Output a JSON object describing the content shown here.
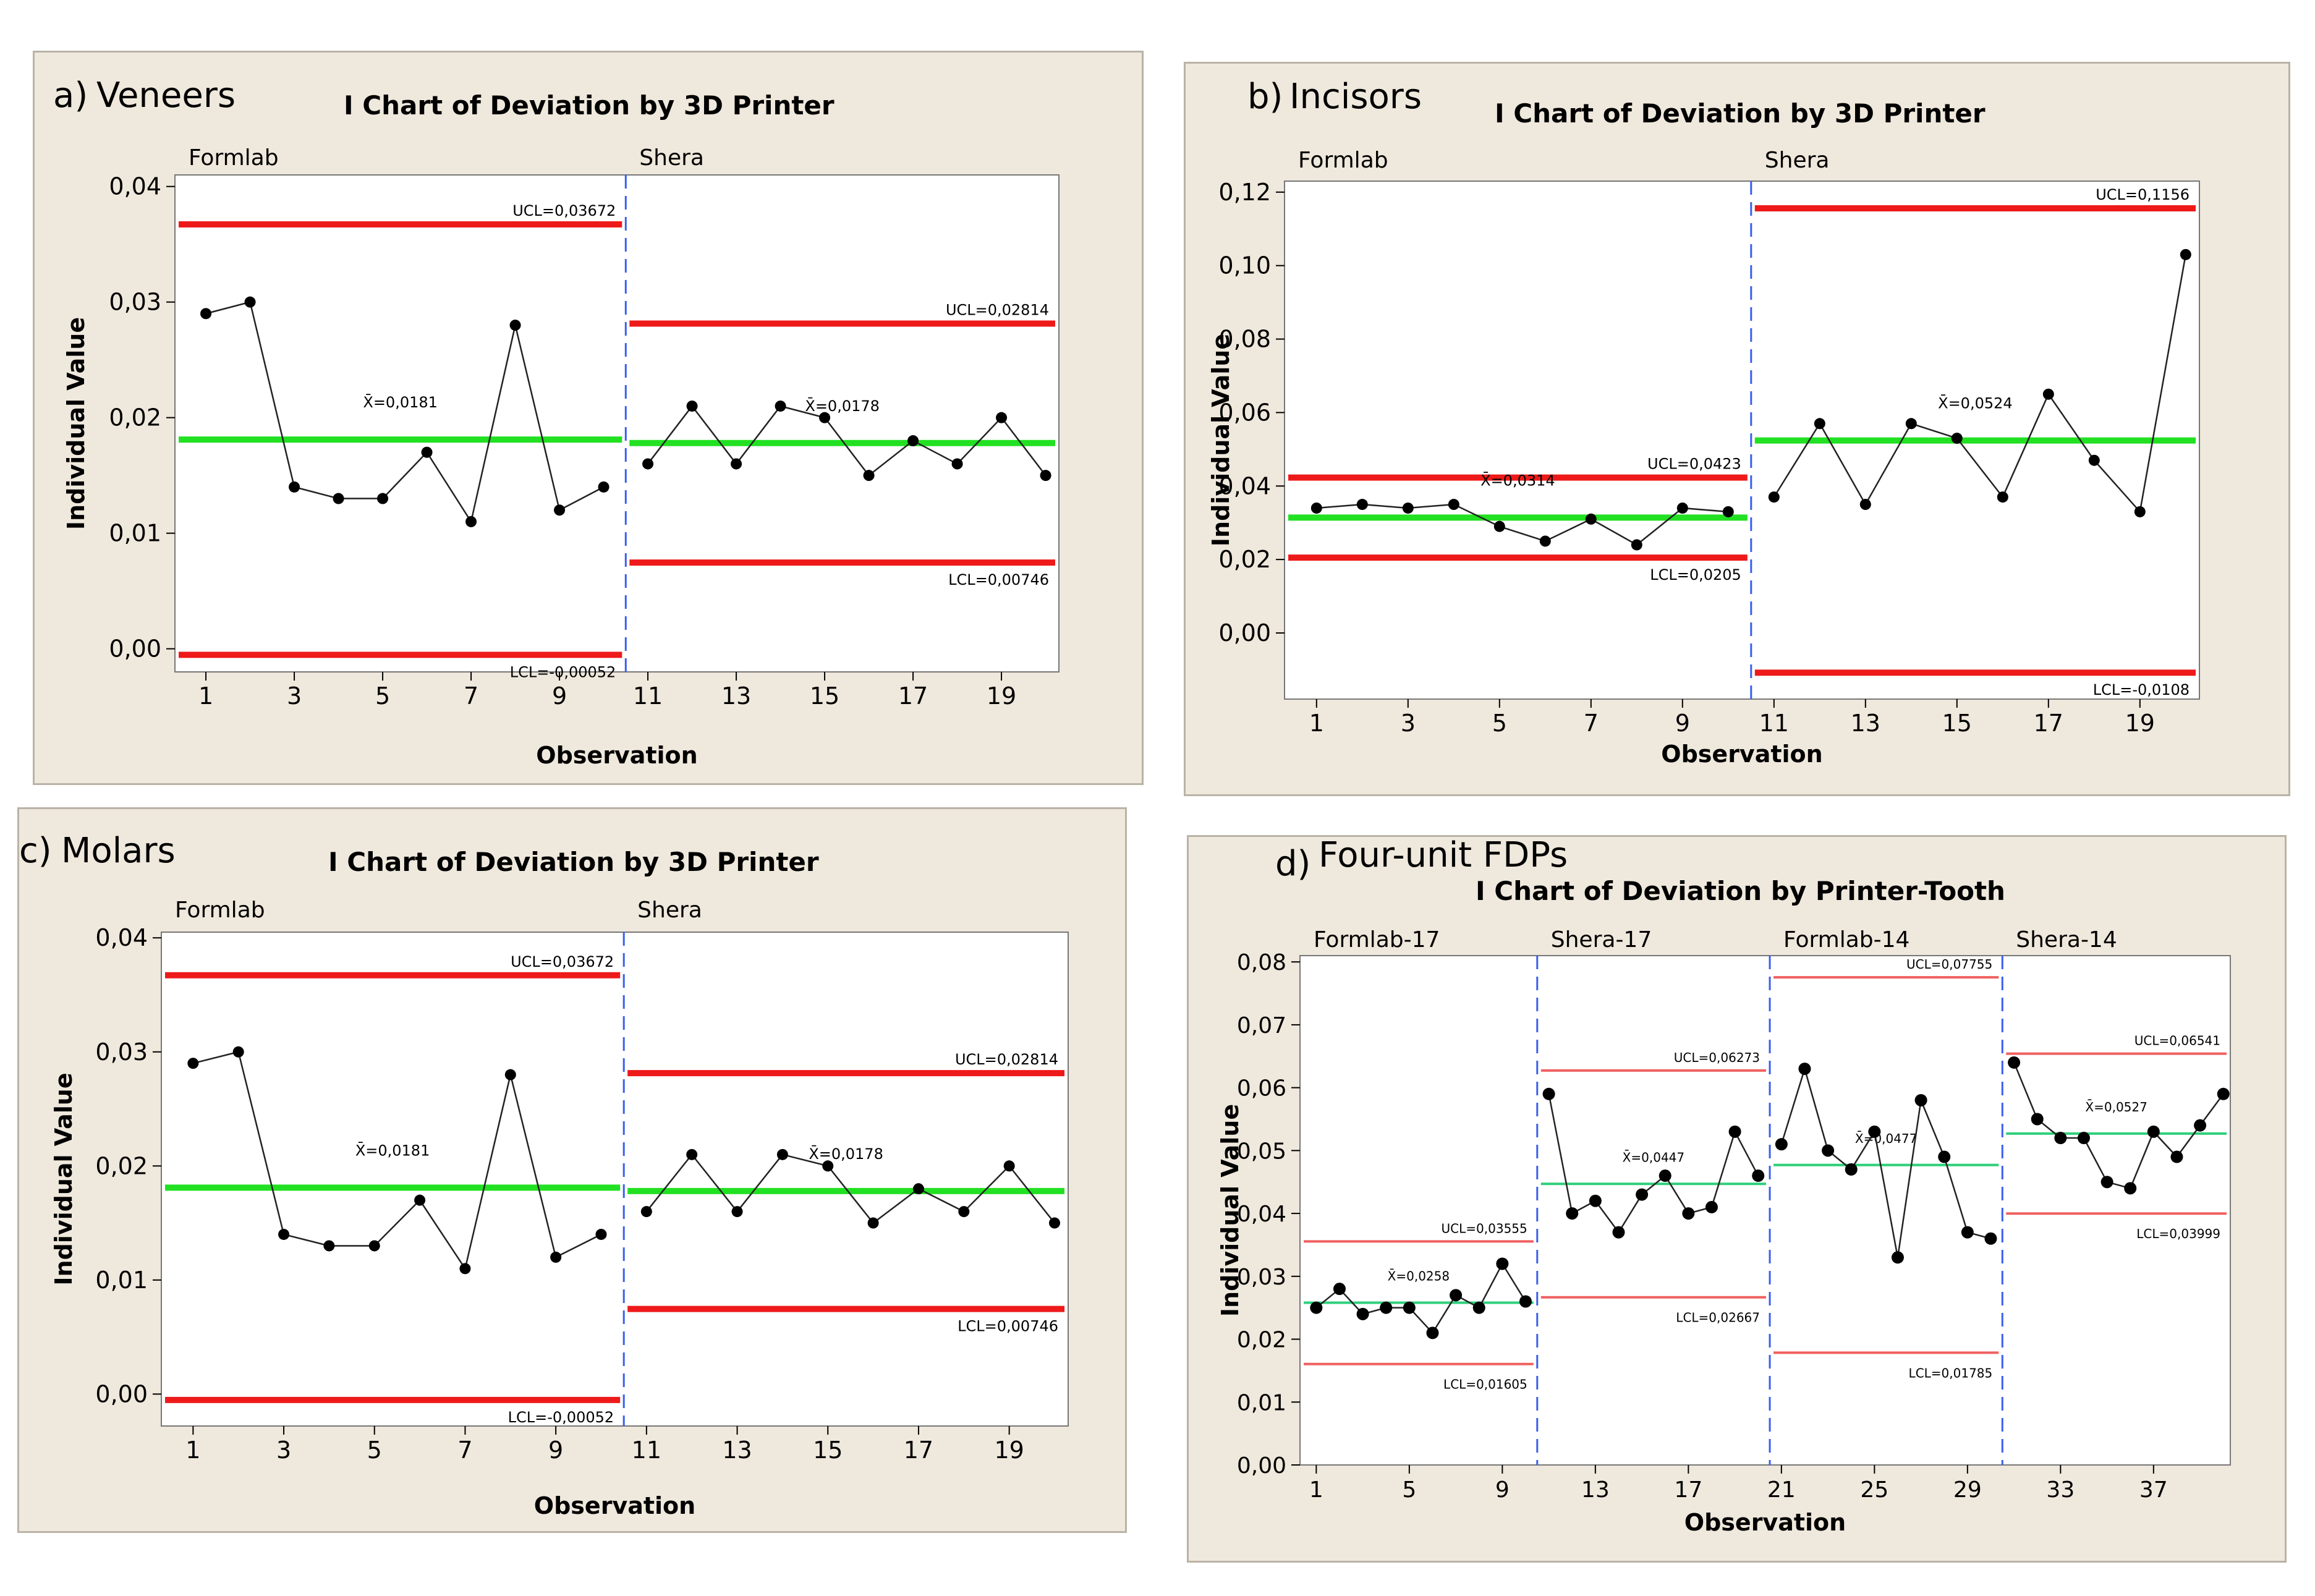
{
  "chart_data": [
    {
      "type": "line",
      "panel_label": "a)",
      "panel_name": "Veneers",
      "title": "I Chart of Deviation by 3D Printer",
      "xlabel": "Observation",
      "ylabel": "Individual Value",
      "xlim": [
        0.3,
        20.3
      ],
      "ylim": [
        -0.002,
        0.041
      ],
      "yticks": [
        0.0,
        0.01,
        0.02,
        0.03,
        0.04
      ],
      "ytick_labels": [
        "0,00",
        "0,01",
        "0,02",
        "0,03",
        "0,04"
      ],
      "xticks": [
        1,
        3,
        5,
        7,
        9,
        11,
        13,
        15,
        17,
        19
      ],
      "xtick_labels": [
        "1",
        "3",
        "5",
        "7",
        "9",
        "11",
        "13",
        "15",
        "17",
        "19"
      ],
      "groups": [
        {
          "name": "Formlab",
          "x": [
            1,
            2,
            3,
            4,
            5,
            6,
            7,
            8,
            9,
            10
          ],
          "values": [
            0.029,
            0.03,
            0.014,
            0.013,
            0.013,
            0.017,
            0.011,
            0.028,
            0.012,
            0.014
          ],
          "ucl": 0.03672,
          "center": 0.0181,
          "lcl": -0.00052,
          "ucl_label": "UCL=0,03672",
          "center_label": "X̄=0,0181",
          "lcl_label": "LCL=-0,00052"
        },
        {
          "name": "Shera",
          "x": [
            11,
            12,
            13,
            14,
            15,
            16,
            17,
            18,
            19,
            20
          ],
          "values": [
            0.016,
            0.021,
            0.016,
            0.021,
            0.02,
            0.015,
            0.018,
            0.016,
            0.02,
            0.015
          ],
          "ucl": 0.02814,
          "center": 0.0178,
          "lcl": 0.00746,
          "ucl_label": "UCL=0,02814",
          "center_label": "X̄=0,0178",
          "lcl_label": "LCL=0,00746"
        }
      ]
    },
    {
      "type": "line",
      "panel_label": "b)",
      "panel_name": "Incisors",
      "title": "I Chart of Deviation by 3D Printer",
      "xlabel": "Observation",
      "ylabel": "Individual Value",
      "xlim": [
        0.3,
        20.3
      ],
      "ylim": [
        -0.018,
        0.123
      ],
      "yticks": [
        0.0,
        0.02,
        0.04,
        0.06,
        0.08,
        0.1,
        0.12
      ],
      "ytick_labels": [
        "0,00",
        "0,02",
        "0,04",
        "0,06",
        "0,08",
        "0,10",
        "0,12"
      ],
      "xticks": [
        1,
        3,
        5,
        7,
        9,
        11,
        13,
        15,
        17,
        19
      ],
      "xtick_labels": [
        "1",
        "3",
        "5",
        "7",
        "9",
        "11",
        "13",
        "15",
        "17",
        "19"
      ],
      "groups": [
        {
          "name": "Formlab",
          "x": [
            1,
            2,
            3,
            4,
            5,
            6,
            7,
            8,
            9,
            10
          ],
          "values": [
            0.034,
            0.035,
            0.034,
            0.035,
            0.029,
            0.025,
            0.031,
            0.024,
            0.034,
            0.033
          ],
          "ucl": 0.0423,
          "center": 0.0314,
          "lcl": 0.0205,
          "ucl_label": "UCL=0,0423",
          "center_label": "X̄=0,0314",
          "lcl_label": "LCL=0,0205"
        },
        {
          "name": "Shera",
          "x": [
            11,
            12,
            13,
            14,
            15,
            16,
            17,
            18,
            19,
            20
          ],
          "values": [
            0.037,
            0.057,
            0.035,
            0.057,
            0.053,
            0.037,
            0.065,
            0.047,
            0.033,
            0.103
          ],
          "ucl": 0.1156,
          "center": 0.0524,
          "lcl": -0.0108,
          "ucl_label": "UCL=0,1156",
          "center_label": "X̄=0,0524",
          "lcl_label": "LCL=-0,0108"
        }
      ]
    },
    {
      "type": "line",
      "panel_label": "c)",
      "panel_name": "Molars",
      "title": "I Chart of Deviation by 3D Printer",
      "xlabel": "Observation",
      "ylabel": "Individual Value",
      "xlim": [
        0.3,
        20.3
      ],
      "ylim": [
        -0.0028,
        0.0405
      ],
      "yticks": [
        0.0,
        0.01,
        0.02,
        0.03,
        0.04
      ],
      "ytick_labels": [
        "0,00",
        "0,01",
        "0,02",
        "0,03",
        "0,04"
      ],
      "xticks": [
        1,
        3,
        5,
        7,
        9,
        11,
        13,
        15,
        17,
        19
      ],
      "xtick_labels": [
        "1",
        "3",
        "5",
        "7",
        "9",
        "11",
        "13",
        "15",
        "17",
        "19"
      ],
      "groups": [
        {
          "name": "Formlab",
          "x": [
            1,
            2,
            3,
            4,
            5,
            6,
            7,
            8,
            9,
            10
          ],
          "values": [
            0.029,
            0.03,
            0.014,
            0.013,
            0.013,
            0.017,
            0.011,
            0.028,
            0.012,
            0.014
          ],
          "ucl": 0.03672,
          "center": 0.0181,
          "lcl": -0.00052,
          "ucl_label": "UCL=0,03672",
          "center_label": "X̄=0,0181",
          "lcl_label": "LCL=-0,00052"
        },
        {
          "name": "Shera",
          "x": [
            11,
            12,
            13,
            14,
            15,
            16,
            17,
            18,
            19,
            20
          ],
          "values": [
            0.016,
            0.021,
            0.016,
            0.021,
            0.02,
            0.015,
            0.018,
            0.016,
            0.02,
            0.015
          ],
          "ucl": 0.02814,
          "center": 0.0178,
          "lcl": 0.00746,
          "ucl_label": "UCL=0,02814",
          "center_label": "X̄=0,0178",
          "lcl_label": "LCL=0,00746"
        }
      ]
    },
    {
      "type": "line",
      "panel_label": "d)",
      "panel_name": "Four-unit FDPs",
      "title": "I Chart of Deviation by Printer-Tooth",
      "xlabel": "Observation",
      "ylabel": "Individual Value",
      "xlim": [
        0.3,
        40.3
      ],
      "ylim": [
        0.0,
        0.081
      ],
      "yticks": [
        0.0,
        0.01,
        0.02,
        0.03,
        0.04,
        0.05,
        0.06,
        0.07,
        0.08
      ],
      "ytick_labels": [
        "0,00",
        "0,01",
        "0,02",
        "0,03",
        "0,04",
        "0,05",
        "0,06",
        "0,07",
        "0,08"
      ],
      "xticks": [
        1,
        5,
        9,
        13,
        17,
        21,
        25,
        29,
        33,
        37
      ],
      "xtick_labels": [
        "1",
        "5",
        "9",
        "13",
        "17",
        "21",
        "25",
        "29",
        "33",
        "37"
      ],
      "groups": [
        {
          "name": "Formlab-17",
          "x": [
            1,
            2,
            3,
            4,
            5,
            6,
            7,
            8,
            9,
            10
          ],
          "values": [
            0.025,
            0.028,
            0.024,
            0.025,
            0.025,
            0.021,
            0.027,
            0.025,
            0.032,
            0.026
          ],
          "ucl": 0.03555,
          "center": 0.0258,
          "lcl": 0.01605,
          "ucl_label": "UCL=0,03555",
          "center_label": "X̄=0,0258",
          "lcl_label": "LCL=0,01605"
        },
        {
          "name": "Shera-17",
          "x": [
            11,
            12,
            13,
            14,
            15,
            16,
            17,
            18,
            19,
            20
          ],
          "values": [
            0.059,
            0.04,
            0.042,
            0.037,
            0.043,
            0.046,
            0.04,
            0.041,
            0.053,
            0.046
          ],
          "ucl": 0.06273,
          "center": 0.0447,
          "lcl": 0.02667,
          "ucl_label": "UCL=0,06273",
          "center_label": "X̄=0,0447",
          "lcl_label": "LCL=0,02667"
        },
        {
          "name": "Formlab-14",
          "x": [
            21,
            22,
            23,
            24,
            25,
            26,
            27,
            28,
            29,
            30
          ],
          "values": [
            0.051,
            0.063,
            0.05,
            0.047,
            0.053,
            0.033,
            0.058,
            0.049,
            0.037,
            0.036
          ],
          "ucl": 0.07755,
          "center": 0.0477,
          "lcl": 0.01785,
          "ucl_label": "UCL=0,07755",
          "center_label": "X̄=0,0477",
          "lcl_label": "LCL=0,01785"
        },
        {
          "name": "Shera-14",
          "x": [
            31,
            32,
            33,
            34,
            35,
            36,
            37,
            38,
            39,
            40
          ],
          "values": [
            0.064,
            0.055,
            0.052,
            0.052,
            0.045,
            0.044,
            0.053,
            0.049,
            0.054,
            0.059
          ],
          "ucl": 0.06541,
          "center": 0.0527,
          "lcl": 0.03999,
          "ucl_label": "UCL=0,06541",
          "center_label": "X̄=0,0527",
          "lcl_label": "LCL=0,03999"
        }
      ]
    }
  ]
}
